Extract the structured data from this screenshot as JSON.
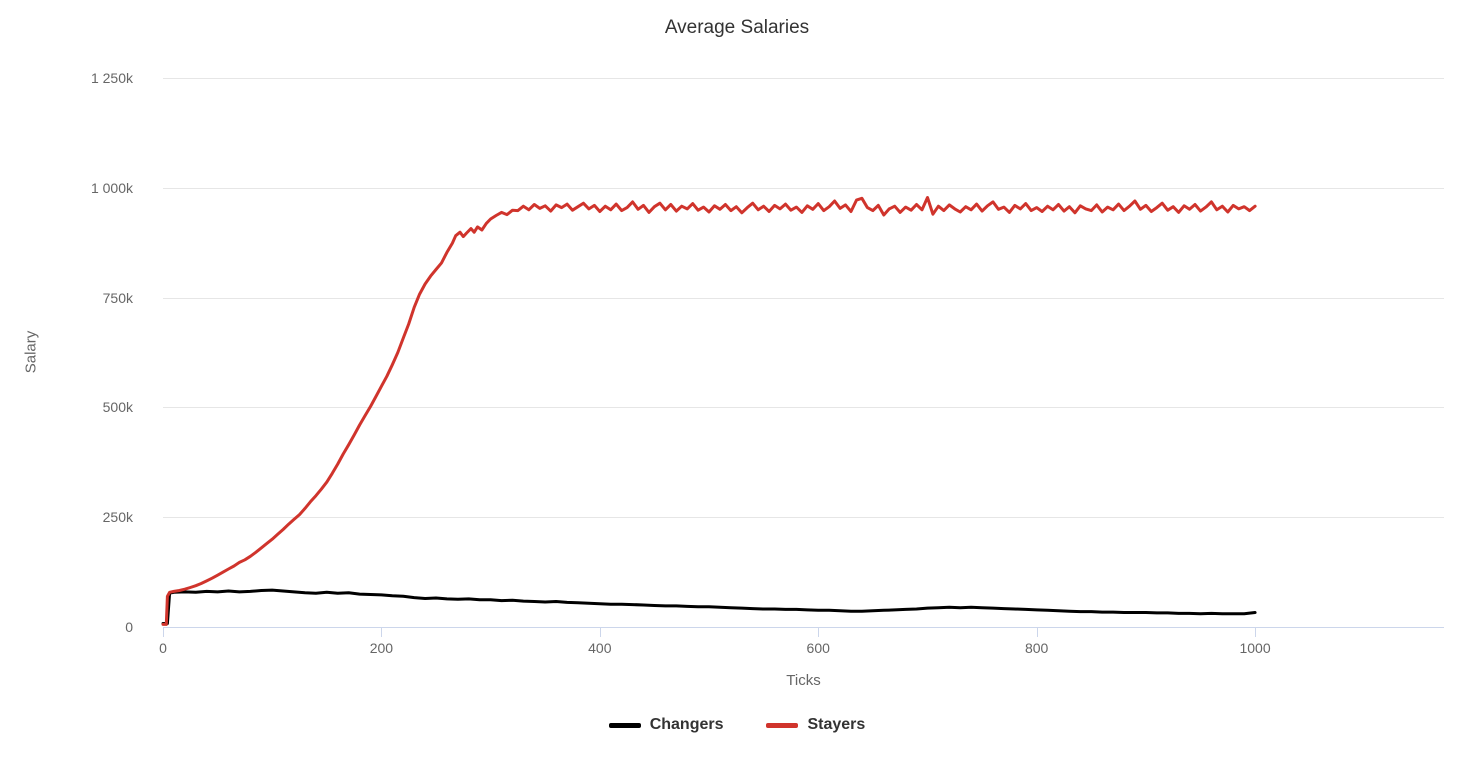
{
  "chart_data": {
    "type": "line",
    "title": "Average Salaries",
    "xlabel": "Ticks",
    "ylabel": "Salary",
    "x_axis": {
      "ticks": [
        0,
        200,
        400,
        600,
        800,
        1000
      ],
      "range": [
        0,
        1173
      ]
    },
    "y_axis": {
      "tick_labels": [
        "0",
        "250k",
        "500k",
        "750k",
        "1 000k",
        "1 250k"
      ],
      "tick_values_k": [
        0,
        250,
        500,
        750,
        1000,
        1250
      ],
      "range_k": [
        0,
        1250
      ],
      "unit": "salary in thousands (k)"
    },
    "grid": "horizontal-only",
    "legend_position": "bottom-center",
    "colors": {
      "grid": "#e6e6e6",
      "axis_line": "#ccd6eb",
      "title_text": "#333333",
      "axis_label_text": "#666666",
      "legend_text": "#333333",
      "changers": "#000000",
      "stayers": "#d0342c"
    },
    "series": [
      {
        "name": "Changers",
        "color": "#000000",
        "points_tick_valueK": [
          [
            0,
            8
          ],
          [
            4,
            8
          ],
          [
            6,
            77
          ],
          [
            10,
            79
          ],
          [
            20,
            80
          ],
          [
            30,
            79
          ],
          [
            40,
            81
          ],
          [
            50,
            80
          ],
          [
            60,
            82
          ],
          [
            70,
            80
          ],
          [
            80,
            81
          ],
          [
            90,
            83
          ],
          [
            100,
            84
          ],
          [
            110,
            82
          ],
          [
            120,
            80
          ],
          [
            130,
            78
          ],
          [
            140,
            77
          ],
          [
            150,
            79
          ],
          [
            160,
            77
          ],
          [
            170,
            78
          ],
          [
            180,
            75
          ],
          [
            190,
            74
          ],
          [
            200,
            73
          ],
          [
            210,
            71
          ],
          [
            220,
            70
          ],
          [
            230,
            67
          ],
          [
            240,
            65
          ],
          [
            250,
            66
          ],
          [
            260,
            64
          ],
          [
            270,
            63
          ],
          [
            280,
            64
          ],
          [
            290,
            62
          ],
          [
            300,
            62
          ],
          [
            310,
            60
          ],
          [
            320,
            61
          ],
          [
            330,
            59
          ],
          [
            340,
            58
          ],
          [
            350,
            57
          ],
          [
            360,
            58
          ],
          [
            370,
            56
          ],
          [
            380,
            55
          ],
          [
            390,
            54
          ],
          [
            400,
            53
          ],
          [
            410,
            52
          ],
          [
            420,
            52
          ],
          [
            430,
            51
          ],
          [
            440,
            50
          ],
          [
            450,
            49
          ],
          [
            460,
            48
          ],
          [
            470,
            48
          ],
          [
            480,
            47
          ],
          [
            490,
            46
          ],
          [
            500,
            46
          ],
          [
            510,
            45
          ],
          [
            520,
            44
          ],
          [
            530,
            43
          ],
          [
            540,
            42
          ],
          [
            550,
            41
          ],
          [
            560,
            41
          ],
          [
            570,
            40
          ],
          [
            580,
            40
          ],
          [
            590,
            39
          ],
          [
            600,
            38
          ],
          [
            610,
            38
          ],
          [
            620,
            37
          ],
          [
            630,
            36
          ],
          [
            640,
            36
          ],
          [
            650,
            37
          ],
          [
            660,
            38
          ],
          [
            670,
            39
          ],
          [
            680,
            40
          ],
          [
            690,
            41
          ],
          [
            700,
            43
          ],
          [
            710,
            44
          ],
          [
            720,
            45
          ],
          [
            730,
            44
          ],
          [
            740,
            45
          ],
          [
            750,
            44
          ],
          [
            760,
            43
          ],
          [
            770,
            42
          ],
          [
            780,
            41
          ],
          [
            790,
            40
          ],
          [
            800,
            39
          ],
          [
            810,
            38
          ],
          [
            820,
            37
          ],
          [
            830,
            36
          ],
          [
            840,
            35
          ],
          [
            850,
            35
          ],
          [
            860,
            34
          ],
          [
            870,
            34
          ],
          [
            880,
            33
          ],
          [
            890,
            33
          ],
          [
            900,
            33
          ],
          [
            910,
            32
          ],
          [
            920,
            32
          ],
          [
            930,
            31
          ],
          [
            940,
            31
          ],
          [
            950,
            30
          ],
          [
            960,
            31
          ],
          [
            970,
            30
          ],
          [
            980,
            30
          ],
          [
            990,
            30
          ],
          [
            1000,
            33
          ]
        ]
      },
      {
        "name": "Stayers",
        "color": "#d0342c",
        "points_tick_valueK": [
          [
            0,
            6
          ],
          [
            3,
            6
          ],
          [
            4,
            70
          ],
          [
            6,
            79
          ],
          [
            10,
            81
          ],
          [
            15,
            83
          ],
          [
            20,
            86
          ],
          [
            25,
            90
          ],
          [
            30,
            94
          ],
          [
            35,
            99
          ],
          [
            40,
            105
          ],
          [
            45,
            111
          ],
          [
            50,
            118
          ],
          [
            55,
            125
          ],
          [
            60,
            132
          ],
          [
            65,
            139
          ],
          [
            70,
            147
          ],
          [
            75,
            153
          ],
          [
            80,
            161
          ],
          [
            85,
            170
          ],
          [
            90,
            180
          ],
          [
            95,
            190
          ],
          [
            100,
            200
          ],
          [
            105,
            211
          ],
          [
            110,
            222
          ],
          [
            115,
            234
          ],
          [
            120,
            245
          ],
          [
            125,
            256
          ],
          [
            130,
            270
          ],
          [
            135,
            285
          ],
          [
            140,
            299
          ],
          [
            145,
            314
          ],
          [
            150,
            330
          ],
          [
            155,
            350
          ],
          [
            160,
            371
          ],
          [
            165,
            394
          ],
          [
            170,
            415
          ],
          [
            175,
            437
          ],
          [
            180,
            460
          ],
          [
            185,
            481
          ],
          [
            190,
            502
          ],
          [
            195,
            525
          ],
          [
            200,
            548
          ],
          [
            205,
            571
          ],
          [
            210,
            597
          ],
          [
            215,
            625
          ],
          [
            220,
            658
          ],
          [
            225,
            690
          ],
          [
            230,
            728
          ],
          [
            235,
            758
          ],
          [
            240,
            781
          ],
          [
            245,
            799
          ],
          [
            250,
            814
          ],
          [
            255,
            829
          ],
          [
            260,
            853
          ],
          [
            265,
            874
          ],
          [
            268,
            891
          ],
          [
            272,
            899
          ],
          [
            275,
            889
          ],
          [
            278,
            897
          ],
          [
            282,
            907
          ],
          [
            285,
            899
          ],
          [
            288,
            911
          ],
          [
            292,
            904
          ],
          [
            296,
            919
          ],
          [
            300,
            929
          ],
          [
            305,
            937
          ],
          [
            310,
            944
          ],
          [
            315,
            939
          ],
          [
            320,
            949
          ],
          [
            325,
            948
          ],
          [
            330,
            958
          ],
          [
            335,
            950
          ],
          [
            340,
            962
          ],
          [
            345,
            953
          ],
          [
            350,
            959
          ],
          [
            355,
            947
          ],
          [
            360,
            961
          ],
          [
            365,
            955
          ],
          [
            370,
            963
          ],
          [
            375,
            949
          ],
          [
            380,
            957
          ],
          [
            385,
            965
          ],
          [
            390,
            952
          ],
          [
            395,
            960
          ],
          [
            400,
            946
          ],
          [
            405,
            958
          ],
          [
            410,
            950
          ],
          [
            415,
            963
          ],
          [
            420,
            948
          ],
          [
            425,
            955
          ],
          [
            430,
            968
          ],
          [
            435,
            951
          ],
          [
            440,
            960
          ],
          [
            445,
            944
          ],
          [
            450,
            957
          ],
          [
            455,
            965
          ],
          [
            460,
            950
          ],
          [
            465,
            962
          ],
          [
            470,
            947
          ],
          [
            475,
            958
          ],
          [
            480,
            952
          ],
          [
            485,
            964
          ],
          [
            490,
            949
          ],
          [
            495,
            956
          ],
          [
            500,
            945
          ],
          [
            505,
            959
          ],
          [
            510,
            951
          ],
          [
            515,
            962
          ],
          [
            520,
            948
          ],
          [
            525,
            957
          ],
          [
            530,
            943
          ],
          [
            535,
            955
          ],
          [
            540,
            965
          ],
          [
            545,
            950
          ],
          [
            550,
            958
          ],
          [
            555,
            946
          ],
          [
            560,
            960
          ],
          [
            565,
            952
          ],
          [
            570,
            963
          ],
          [
            575,
            949
          ],
          [
            580,
            956
          ],
          [
            585,
            944
          ],
          [
            590,
            959
          ],
          [
            595,
            951
          ],
          [
            600,
            964
          ],
          [
            605,
            948
          ],
          [
            610,
            957
          ],
          [
            615,
            970
          ],
          [
            620,
            953
          ],
          [
            625,
            961
          ],
          [
            630,
            946
          ],
          [
            635,
            972
          ],
          [
            640,
            976
          ],
          [
            645,
            955
          ],
          [
            650,
            948
          ],
          [
            655,
            960
          ],
          [
            660,
            938
          ],
          [
            665,
            952
          ],
          [
            670,
            958
          ],
          [
            675,
            944
          ],
          [
            680,
            956
          ],
          [
            685,
            949
          ],
          [
            690,
            962
          ],
          [
            695,
            950
          ],
          [
            700,
            978
          ],
          [
            705,
            940
          ],
          [
            710,
            958
          ],
          [
            715,
            948
          ],
          [
            720,
            961
          ],
          [
            725,
            952
          ],
          [
            730,
            945
          ],
          [
            735,
            957
          ],
          [
            740,
            950
          ],
          [
            745,
            963
          ],
          [
            750,
            947
          ],
          [
            755,
            959
          ],
          [
            760,
            968
          ],
          [
            765,
            951
          ],
          [
            770,
            956
          ],
          [
            775,
            944
          ],
          [
            780,
            960
          ],
          [
            785,
            952
          ],
          [
            790,
            964
          ],
          [
            795,
            948
          ],
          [
            800,
            955
          ],
          [
            805,
            946
          ],
          [
            810,
            958
          ],
          [
            815,
            950
          ],
          [
            820,
            962
          ],
          [
            825,
            947
          ],
          [
            830,
            957
          ],
          [
            835,
            943
          ],
          [
            840,
            959
          ],
          [
            845,
            952
          ],
          [
            850,
            948
          ],
          [
            855,
            961
          ],
          [
            860,
            945
          ],
          [
            865,
            956
          ],
          [
            870,
            950
          ],
          [
            875,
            963
          ],
          [
            880,
            948
          ],
          [
            885,
            958
          ],
          [
            890,
            970
          ],
          [
            895,
            951
          ],
          [
            900,
            960
          ],
          [
            905,
            946
          ],
          [
            910,
            955
          ],
          [
            915,
            965
          ],
          [
            920,
            949
          ],
          [
            925,
            957
          ],
          [
            930,
            944
          ],
          [
            935,
            959
          ],
          [
            940,
            951
          ],
          [
            945,
            962
          ],
          [
            950,
            947
          ],
          [
            955,
            956
          ],
          [
            960,
            968
          ],
          [
            965,
            950
          ],
          [
            970,
            958
          ],
          [
            975,
            945
          ],
          [
            980,
            960
          ],
          [
            985,
            952
          ],
          [
            990,
            957
          ],
          [
            995,
            948
          ],
          [
            1000,
            958
          ]
        ]
      }
    ]
  }
}
